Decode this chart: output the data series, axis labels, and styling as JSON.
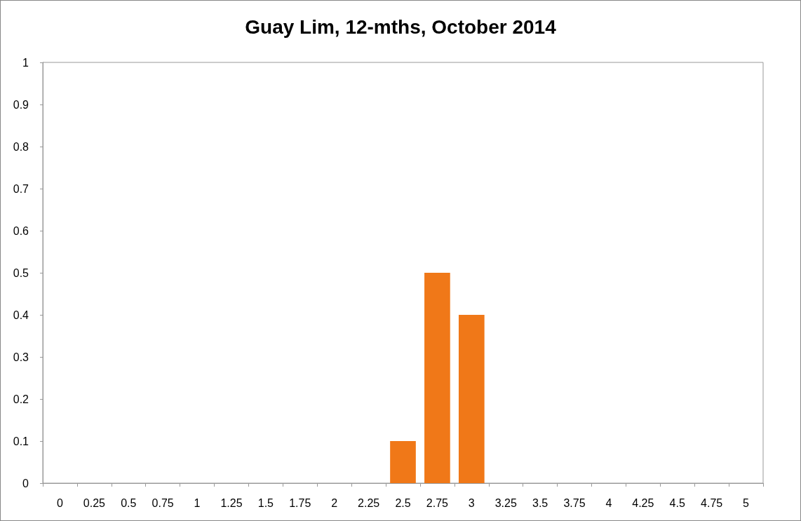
{
  "chart_data": {
    "type": "bar",
    "title": "Guay Lim, 12-mths, October 2014",
    "categories": [
      "0",
      "0.25",
      "0.5",
      "0.75",
      "1",
      "1.25",
      "1.5",
      "1.75",
      "2",
      "2.25",
      "2.5",
      "2.75",
      "3",
      "3.25",
      "3.5",
      "3.75",
      "4",
      "4.25",
      "4.5",
      "4.75",
      "5"
    ],
    "values": [
      0,
      0,
      0,
      0,
      0,
      0,
      0,
      0,
      0,
      0,
      0.1,
      0.5,
      0.4,
      0,
      0,
      0,
      0,
      0,
      0,
      0,
      0
    ],
    "color": "#f07818",
    "ylim": [
      0,
      1
    ],
    "yticks": [
      0,
      0.1,
      0.2,
      0.3,
      0.4,
      0.5,
      0.6,
      0.7,
      0.8,
      0.9,
      1
    ]
  }
}
